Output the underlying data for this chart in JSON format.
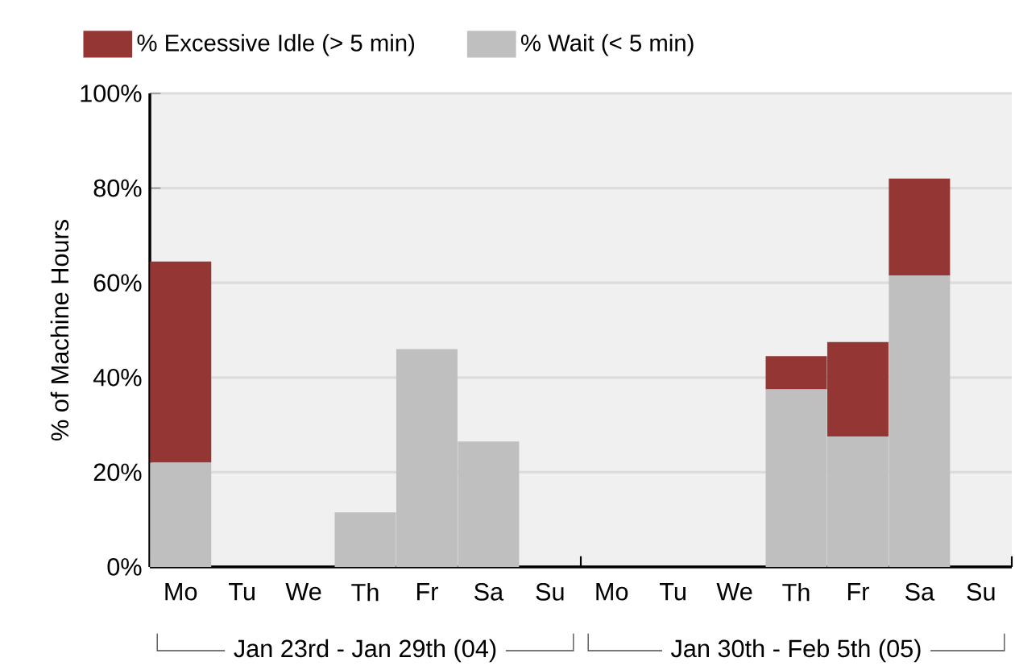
{
  "chart_data": {
    "type": "bar",
    "stacked": true,
    "ylabel": "% of Machine Hours",
    "categories": [
      "Mo",
      "Tu",
      "We",
      "Th",
      "Fr",
      "Sa",
      "Su",
      "Mo",
      "Tu",
      "We",
      "Th",
      "Fr",
      "Sa",
      "Su"
    ],
    "series": [
      {
        "name": "% Wait (< 5 min)",
        "color": "#bfbfbf",
        "values": [
          22,
          0,
          0,
          11.5,
          46,
          26.5,
          0,
          0,
          0,
          0,
          37.5,
          27.5,
          61.5,
          0
        ]
      },
      {
        "name": "% Excessive Idle (> 5 min)",
        "color": "#943634",
        "values": [
          42.5,
          0,
          0,
          0,
          0,
          0,
          0,
          0,
          0,
          0,
          7,
          20,
          20.5,
          0
        ]
      }
    ],
    "ylim": [
      0,
      100
    ],
    "yticks": [
      {
        "value": 0,
        "label": "0%"
      },
      {
        "value": 20,
        "label": "20%"
      },
      {
        "value": 40,
        "label": "40%"
      },
      {
        "value": 60,
        "label": "60%"
      },
      {
        "value": 80,
        "label": "80%"
      },
      {
        "value": 100,
        "label": "100%"
      }
    ],
    "grid": "y",
    "legend": "top",
    "annotations": [
      "Jan 23rd - Jan 29th (04)",
      "Jan 30th - Feb 5th (05)"
    ]
  }
}
